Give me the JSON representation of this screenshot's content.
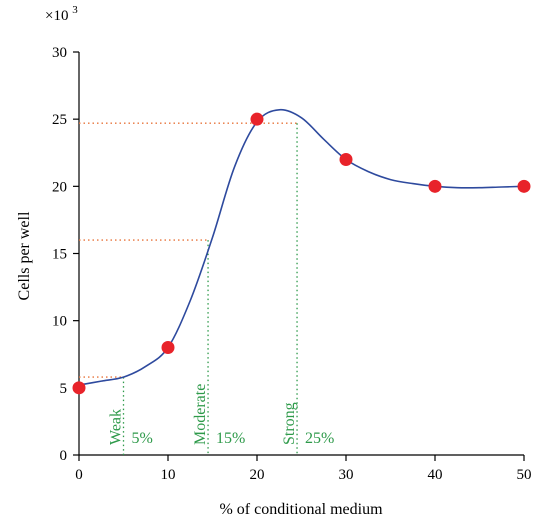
{
  "chart_data": {
    "type": "line",
    "xlabel": "% of conditional medium",
    "ylabel": "Cells per well",
    "y_multiplier_label": "×10",
    "y_multiplier_exp": "3",
    "xlim": [
      0,
      50
    ],
    "ylim": [
      0,
      30
    ],
    "xticks": [
      0,
      10,
      20,
      30,
      40,
      50
    ],
    "yticks": [
      0,
      5,
      10,
      15,
      20,
      25,
      30
    ],
    "grid": false,
    "series": [
      {
        "x": [
          0,
          10,
          20,
          30,
          40,
          50
        ],
        "y": [
          5,
          8,
          25,
          22,
          20,
          20
        ]
      }
    ],
    "curve": [
      [
        0,
        5.2
      ],
      [
        2.5,
        5.5
      ],
      [
        5,
        5.8
      ],
      [
        7.5,
        6.6
      ],
      [
        10,
        8.0
      ],
      [
        12.5,
        11.5
      ],
      [
        15,
        16.2
      ],
      [
        17.5,
        21.5
      ],
      [
        20,
        24.8
      ],
      [
        22.5,
        25.7
      ],
      [
        25,
        25.1
      ],
      [
        27.5,
        23.5
      ],
      [
        30,
        22.0
      ],
      [
        32.5,
        21.1
      ],
      [
        35,
        20.5
      ],
      [
        37.5,
        20.2
      ],
      [
        40,
        20.0
      ],
      [
        42.5,
        19.9
      ],
      [
        45,
        19.9
      ],
      [
        47.5,
        19.95
      ],
      [
        50,
        20.0
      ]
    ],
    "reference_lines": {
      "horizontal": [
        {
          "y": 5.8,
          "x_end": 5
        },
        {
          "y": 16.0,
          "x_end": 14.5
        },
        {
          "y": 24.7,
          "x_end": 24.5
        }
      ],
      "vertical": [
        {
          "x": 5,
          "y_top": 5.8
        },
        {
          "x": 14.5,
          "y_top": 16.0
        },
        {
          "x": 24.5,
          "y_top": 24.7
        }
      ]
    },
    "annotations": [
      {
        "label": "Weak",
        "percent": "5%",
        "x": 5
      },
      {
        "label": "Moderate",
        "percent": "15%",
        "x": 14.5
      },
      {
        "label": "Strong",
        "percent": "25%",
        "x": 24.5
      }
    ],
    "colors": {
      "line": "#2e4a9e",
      "marker": "#e8232a",
      "h_ref": "#e8743b",
      "v_ref": "#2e9a4a",
      "annotation": "#2e9a4a",
      "axis": "#000000"
    }
  }
}
